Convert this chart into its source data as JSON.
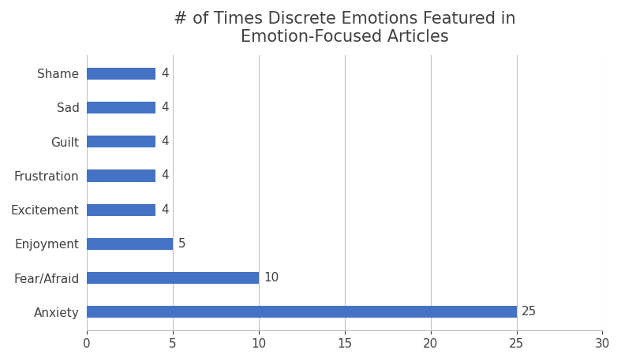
{
  "title": "# of Times Discrete Emotions Featured in\nEmotion-Focused Articles",
  "categories": [
    "Anxiety",
    "Fear/Afraid",
    "Enjoyment",
    "Excitement",
    "Frustration",
    "Guilt",
    "Sad",
    "Shame"
  ],
  "values": [
    25,
    10,
    5,
    4,
    4,
    4,
    4,
    4
  ],
  "bar_color": "#4472C4",
  "xlim": [
    0,
    30
  ],
  "xticks": [
    0,
    5,
    10,
    15,
    20,
    25,
    30
  ],
  "title_fontsize": 15,
  "label_fontsize": 11,
  "tick_fontsize": 11,
  "value_fontsize": 11,
  "bar_height": 0.35,
  "background_color": "#ffffff",
  "grid_color": "#c0c0c0",
  "text_color": "#404040",
  "title_color": "#404040"
}
